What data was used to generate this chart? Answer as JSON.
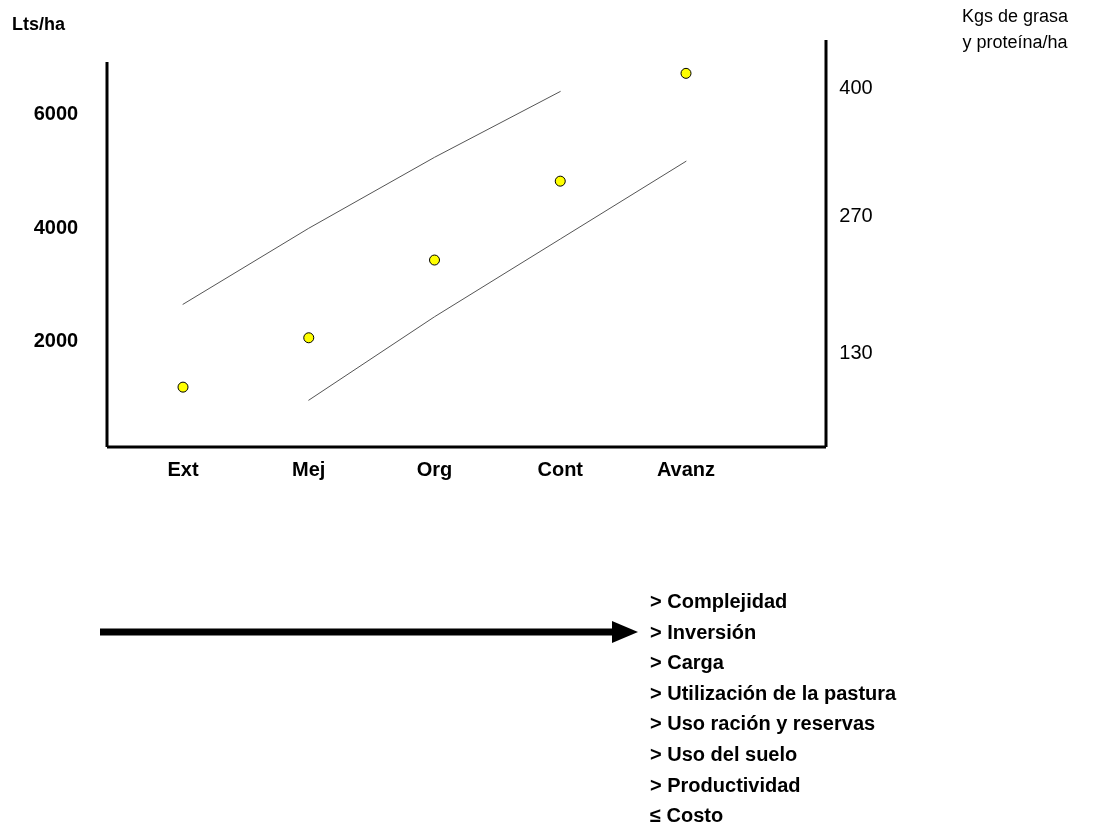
{
  "chart_data": {
    "type": "scatter",
    "ylabel": "Lts/ha",
    "y2label": "Kgs de grasa\ny proteína/ha",
    "categories": [
      "Ext",
      "Mej",
      "Org",
      "Cont",
      "Avanz"
    ],
    "ylim": [
      115,
      6900
    ],
    "yticks": [
      2000,
      4000,
      6000
    ],
    "y2lim": [
      33,
      426
    ],
    "y2ticks": [
      130,
      270,
      400
    ],
    "series": [
      {
        "color": "#ffff00",
        "marker": "circle",
        "values": [
          1170,
          2040,
          3410,
          4800,
          6700
        ]
      },
      {
        "type": "line",
        "color": "#555555",
        "marker": "none",
        "values": [
          2630,
          3970,
          5220,
          6380,
          null
        ]
      },
      {
        "type": "line",
        "color": "#555555",
        "marker": "none",
        "values": [
          null,
          940,
          2410,
          3780,
          5150
        ]
      }
    ],
    "annotations": [
      "> Complejidad",
      "> Inversión",
      "> Carga",
      "> Utilización de la pastura",
      "> Uso ración y reservas",
      "> Uso del suelo",
      "> Productividad",
      "≤ Costo"
    ],
    "legend": false,
    "grid": false
  }
}
